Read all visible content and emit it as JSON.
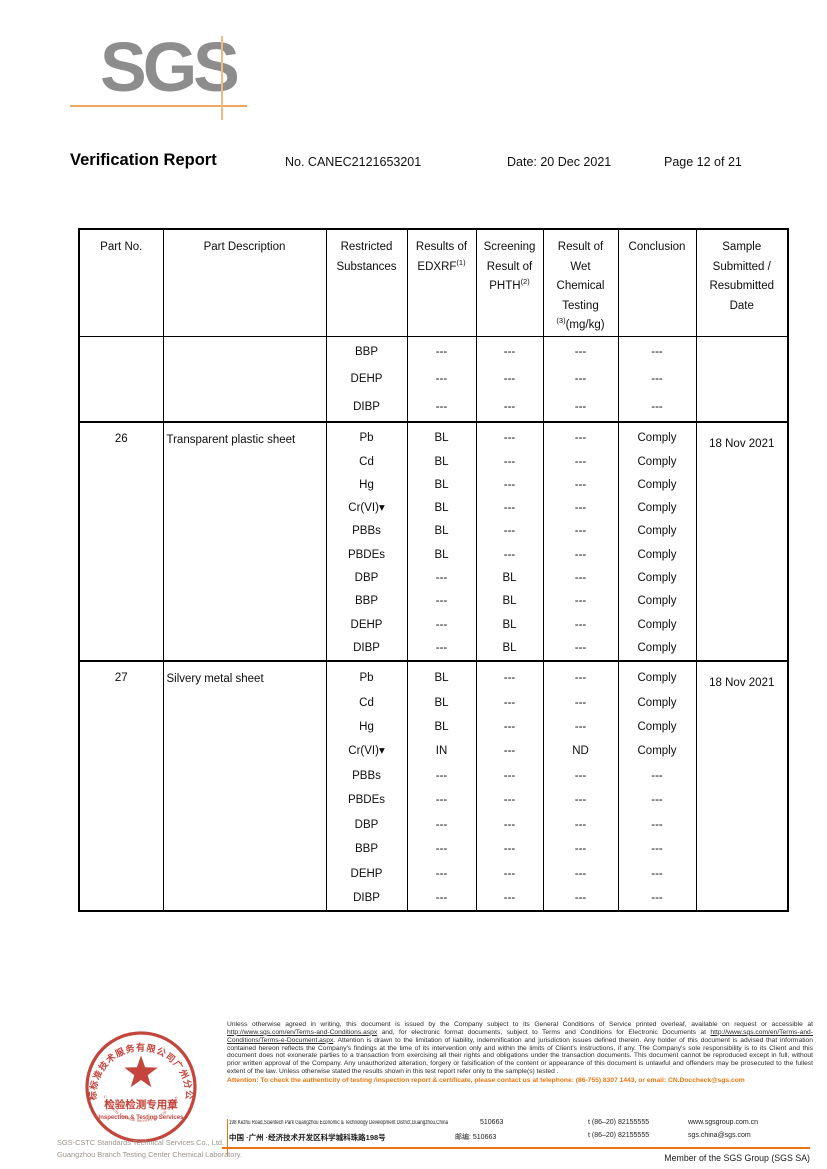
{
  "header": {
    "logo": "SGS",
    "title": "Verification Report",
    "report_no": "No. CANEC2121653201",
    "date": "Date: 20 Dec 2021",
    "page_info": "Page 12 of 21"
  },
  "table": {
    "columns": [
      "Part No.",
      "Part Description",
      "Restricted\nSubstances",
      "Results of\nEDXRF(1)",
      "Screening\nResult of\nPHTH(2)",
      "Result of\nWet\nChemical\nTesting\n(3)(mg/kg)",
      "Conclusion",
      "Sample\nSubmitted /\nResubmitted\nDate"
    ],
    "blocks": [
      {
        "part_no": "",
        "part_description": "",
        "sample_date": "",
        "rows": [
          {
            "substance": "BBP",
            "edxrf": "---",
            "phth": "---",
            "wet": "---",
            "conclusion": "---"
          },
          {
            "substance": "DEHP",
            "edxrf": "---",
            "phth": "---",
            "wet": "---",
            "conclusion": "---"
          },
          {
            "substance": "DIBP",
            "edxrf": "---",
            "phth": "---",
            "wet": "---",
            "conclusion": "---"
          }
        ]
      },
      {
        "part_no": "26",
        "part_description": "Transparent plastic sheet",
        "sample_date": "18 Nov 2021",
        "rows": [
          {
            "substance": "Pb",
            "edxrf": "BL",
            "phth": "---",
            "wet": "---",
            "conclusion": "Comply"
          },
          {
            "substance": "Cd",
            "edxrf": "BL",
            "phth": "---",
            "wet": "---",
            "conclusion": "Comply"
          },
          {
            "substance": "Hg",
            "edxrf": "BL",
            "phth": "---",
            "wet": "---",
            "conclusion": "Comply"
          },
          {
            "substance": "Cr(VI)▾",
            "edxrf": "BL",
            "phth": "---",
            "wet": "---",
            "conclusion": "Comply"
          },
          {
            "substance": "PBBs",
            "edxrf": "BL",
            "phth": "---",
            "wet": "---",
            "conclusion": "Comply"
          },
          {
            "substance": "PBDEs",
            "edxrf": "BL",
            "phth": "---",
            "wet": "---",
            "conclusion": "Comply"
          },
          {
            "substance": "DBP",
            "edxrf": "---",
            "phth": "BL",
            "wet": "---",
            "conclusion": "Comply"
          },
          {
            "substance": "BBP",
            "edxrf": "---",
            "phth": "BL",
            "wet": "---",
            "conclusion": "Comply"
          },
          {
            "substance": "DEHP",
            "edxrf": "---",
            "phth": "BL",
            "wet": "---",
            "conclusion": "Comply"
          },
          {
            "substance": "DIBP",
            "edxrf": "---",
            "phth": "BL",
            "wet": "---",
            "conclusion": "Comply"
          }
        ]
      },
      {
        "part_no": "27",
        "part_description": "Silvery metal sheet",
        "sample_date": "18 Nov 2021",
        "rows": [
          {
            "substance": "Pb",
            "edxrf": "BL",
            "phth": "---",
            "wet": "---",
            "conclusion": "Comply"
          },
          {
            "substance": "Cd",
            "edxrf": "BL",
            "phth": "---",
            "wet": "---",
            "conclusion": "Comply"
          },
          {
            "substance": "Hg",
            "edxrf": "BL",
            "phth": "---",
            "wet": "---",
            "conclusion": "Comply"
          },
          {
            "substance": "Cr(VI)▾",
            "edxrf": "IN",
            "phth": "---",
            "wet": "ND",
            "conclusion": "Comply"
          },
          {
            "substance": "PBBs",
            "edxrf": "---",
            "phth": "---",
            "wet": "---",
            "conclusion": "---"
          },
          {
            "substance": "PBDEs",
            "edxrf": "---",
            "phth": "---",
            "wet": "---",
            "conclusion": "---"
          },
          {
            "substance": "DBP",
            "edxrf": "---",
            "phth": "---",
            "wet": "---",
            "conclusion": "---"
          },
          {
            "substance": "BBP",
            "edxrf": "---",
            "phth": "---",
            "wet": "---",
            "conclusion": "---"
          },
          {
            "substance": "DEHP",
            "edxrf": "---",
            "phth": "---",
            "wet": "---",
            "conclusion": "---"
          },
          {
            "substance": "DIBP",
            "edxrf": "---",
            "phth": "---",
            "wet": "---",
            "conclusion": "---"
          }
        ]
      }
    ]
  },
  "footer": {
    "legal_segments": [
      {
        "text": "Unless otherwise agreed in writing, this document is issued by the Company subject to its General Conditions of Service printed overleaf, available on request or accessible at "
      },
      {
        "text": "http://www.sgs.com/en/Terms-and-Conditions.aspx",
        "underline": true
      },
      {
        "text": " and, for electronic format documents, subject to Terms and Conditions for Electronic Documents at "
      },
      {
        "text": "http://www.sgs.com/en/Terms-and-Conditions/Terms-e-Document.aspx",
        "underline": true
      },
      {
        "text": ". Attention is drawn to the limitation of liability, indemnification and jurisdiction issues defined therein. Any holder of this document is advised that information contained hereon reflects the Company's findings at the time of its intervention only and within the limits of Client's instructions, if any. The Company's sole responsibility is to its Client and this document does not exonerate parties to a transaction from exercising all their rights and obligations under the transaction documents. This document cannot be reproduced except in full, without prior written approval of the Company. Any unauthorized alteration, forgery or falsification of the content or appearance of this document is unlawful and offenders may be prosecuted to the fullest extent of the law. Unless otherwise stated the results shown in this test report refer only to the sample(s) tested ."
      }
    ],
    "attention": "Attention: To check the authenticity of testing /inspection report & certificate, please contact us at telephone: (86-755) 8307 1443, or email: CN.Doccheck@sgs.com",
    "stamp": {
      "ring_text": "通标标准技术服务有限公司广州分公司",
      "bottom_ring_text": "SGS-CSTC Standards Technical Services Co., Ltd. Guangzhou Branch",
      "center_cn": "检验检测专用章",
      "center_en": "Inspection & Testing Services"
    },
    "company_line1": "SGS-CSTC Standards Technical Services Co., Ltd.",
    "company_line2": "Guangzhou Branch Testing Center Chemical Laboratory.",
    "address_en": "198 Kezhu Road,Scientech Park Guangzhou Economic & Technology Development District,Guangzhou,China",
    "postal_code": "510663",
    "address_cn": "中国 ·广州 ·经济技术开发区科学城科珠路198号",
    "postal_cn": "邮编: 510663",
    "phone1": "t (86–20) 82155555",
    "phone2": "t (86–20) 82155555",
    "website": "www.sgsgroup.com.cn",
    "email": "sgs.china@sgs.com",
    "member": "Member of the SGS Group (SGS SA)"
  },
  "colors": {
    "logo_gray": "#8d8d8d",
    "logo_orange": "#efa660",
    "attention_orange": "#e87511",
    "stamp_red": "#c4453c"
  }
}
